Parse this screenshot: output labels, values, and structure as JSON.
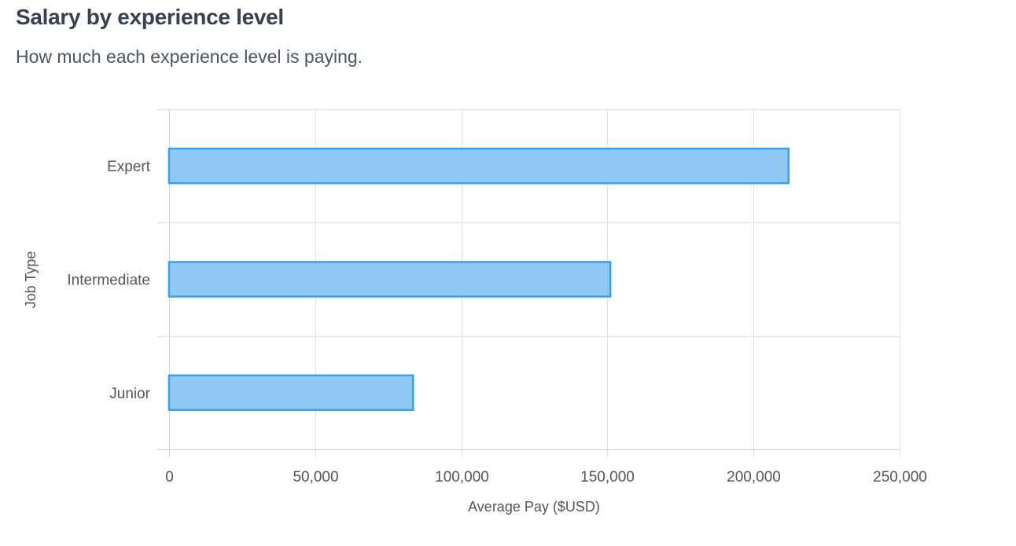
{
  "header": {
    "title": "Salary by experience level",
    "subtitle": "How much each experience level is paying."
  },
  "colors": {
    "bar_fill": "#90c8f4",
    "bar_stroke": "#36a2eb",
    "grid": "#e1e1e1",
    "text": "#555555"
  },
  "chart_data": {
    "type": "bar",
    "orientation": "horizontal",
    "categories": [
      "Expert",
      "Intermediate",
      "Junior"
    ],
    "values": [
      212000,
      151000,
      83500
    ],
    "xlabel": "Average Pay ($USD)",
    "ylabel": "Job Type",
    "xlim": [
      0,
      250000
    ],
    "x_ticks": [
      0,
      50000,
      100000,
      150000,
      200000,
      250000
    ],
    "x_tick_labels": [
      "0",
      "50,000",
      "100,000",
      "150,000",
      "200,000",
      "250,000"
    ],
    "grid": true,
    "legend": false
  }
}
